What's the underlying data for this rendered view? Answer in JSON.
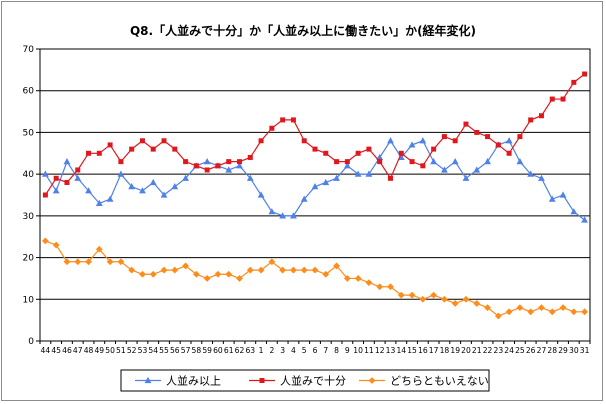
{
  "chart_data": {
    "type": "line",
    "title": "Q8.「人並みで十分」か「人並み以上に働きたい」か(経年変化)",
    "xlabel": "",
    "ylabel": "",
    "ylim": [
      0,
      70
    ],
    "yticks": [
      0,
      10,
      20,
      30,
      40,
      50,
      60,
      70
    ],
    "grid": true,
    "legend_position": "bottom",
    "categories": [
      "44",
      "45",
      "46",
      "47",
      "48",
      "49",
      "50",
      "51",
      "52",
      "53",
      "54",
      "55",
      "56",
      "57",
      "58",
      "59",
      "60",
      "61",
      "62",
      "63",
      "1",
      "2",
      "3",
      "4",
      "5",
      "6",
      "7",
      "8",
      "9",
      "10",
      "11",
      "12",
      "13",
      "14",
      "15",
      "16",
      "17",
      "18",
      "19",
      "20",
      "21",
      "22",
      "23",
      "24",
      "25",
      "26",
      "27",
      "28",
      "29",
      "30",
      "31"
    ],
    "series": [
      {
        "name": "人並み以上",
        "color": "#4f81e8",
        "marker": "triangle",
        "values": [
          40,
          36,
          43,
          39,
          36,
          33,
          34,
          40,
          37,
          36,
          38,
          35,
          37,
          39,
          42,
          43,
          42,
          41,
          42,
          39,
          35,
          31,
          30,
          30,
          34,
          37,
          38,
          39,
          42,
          40,
          40,
          44,
          48,
          44,
          47,
          48,
          43,
          41,
          43,
          39,
          41,
          43,
          47,
          48,
          43,
          40,
          39,
          34,
          35,
          31,
          29
        ]
      },
      {
        "name": "人並みで十分",
        "color": "#e0181e",
        "marker": "square",
        "values": [
          35,
          39,
          38,
          41,
          45,
          45,
          47,
          43,
          46,
          48,
          46,
          48,
          46,
          43,
          42,
          41,
          42,
          43,
          43,
          44,
          48,
          51,
          53,
          53,
          48,
          46,
          45,
          43,
          43,
          45,
          46,
          43,
          39,
          45,
          43,
          42,
          46,
          49,
          48,
          52,
          50,
          49,
          47,
          45,
          49,
          53,
          54,
          58,
          58,
          62,
          64
        ]
      },
      {
        "name": "どちらともいえない",
        "color": "#ff8c1a",
        "marker": "diamond",
        "values": [
          24,
          23,
          19,
          19,
          19,
          22,
          19,
          19,
          17,
          16,
          16,
          17,
          17,
          18,
          16,
          15,
          16,
          16,
          15,
          17,
          17,
          19,
          17,
          17,
          17,
          17,
          16,
          18,
          15,
          15,
          14,
          13,
          13,
          11,
          11,
          10,
          11,
          10,
          9,
          10,
          9,
          8,
          6,
          7,
          8,
          7,
          8,
          7,
          8,
          7,
          7
        ]
      }
    ]
  }
}
